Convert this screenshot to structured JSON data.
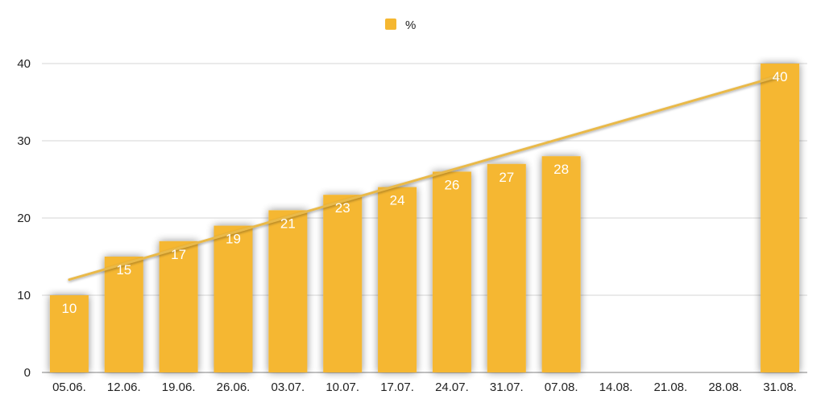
{
  "chart_data": {
    "type": "bar",
    "categories": [
      "05.06.",
      "12.06.",
      "19.06.",
      "26.06.",
      "03.07.",
      "10.07.",
      "17.07.",
      "24.07.",
      "31.07.",
      "07.08.",
      "14.08.",
      "21.08.",
      "28.08.",
      "31.08."
    ],
    "series": [
      {
        "name": "%",
        "values": [
          10,
          15,
          17,
          19,
          21,
          23,
          24,
          26,
          27,
          28,
          null,
          null,
          null,
          40
        ],
        "color": "#F5B731"
      }
    ],
    "trendline": {
      "type": "linear",
      "color": "#E9B94A"
    },
    "ylim": [
      0,
      40
    ],
    "yticks": [
      0,
      10,
      20,
      30,
      40
    ],
    "grid": true,
    "legend": {
      "position": "top-center"
    },
    "data_labels": true,
    "title": "",
    "xlabel": "",
    "ylabel": ""
  }
}
